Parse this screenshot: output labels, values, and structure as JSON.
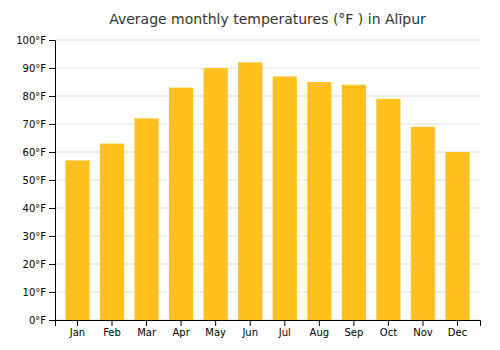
{
  "chart_data": {
    "type": "bar",
    "title": "Average monthly temperatures (°F ) in Alīpur",
    "categories": [
      "Jan",
      "Feb",
      "Mar",
      "Apr",
      "May",
      "Jun",
      "Jul",
      "Aug",
      "Sep",
      "Oct",
      "Nov",
      "Dec"
    ],
    "values": [
      57,
      63,
      72,
      83,
      90,
      92,
      87,
      85,
      84,
      79,
      69,
      60
    ],
    "color": "#FFC020",
    "ylim": [
      0,
      100
    ],
    "yticks": [
      {
        "value": 0,
        "label": "0°F"
      },
      {
        "value": 10,
        "label": "10°F"
      },
      {
        "value": 20,
        "label": "20°F"
      },
      {
        "value": 30,
        "label": "30°F"
      },
      {
        "value": 40,
        "label": "40°F"
      },
      {
        "value": 50,
        "label": "50°F"
      },
      {
        "value": 60,
        "label": "60°F"
      },
      {
        "value": 70,
        "label": "70°F"
      },
      {
        "value": 80,
        "label": "80°F"
      },
      {
        "value": 90,
        "label": "90°F"
      },
      {
        "value": 100,
        "label": "100°F"
      }
    ],
    "grid": true
  }
}
